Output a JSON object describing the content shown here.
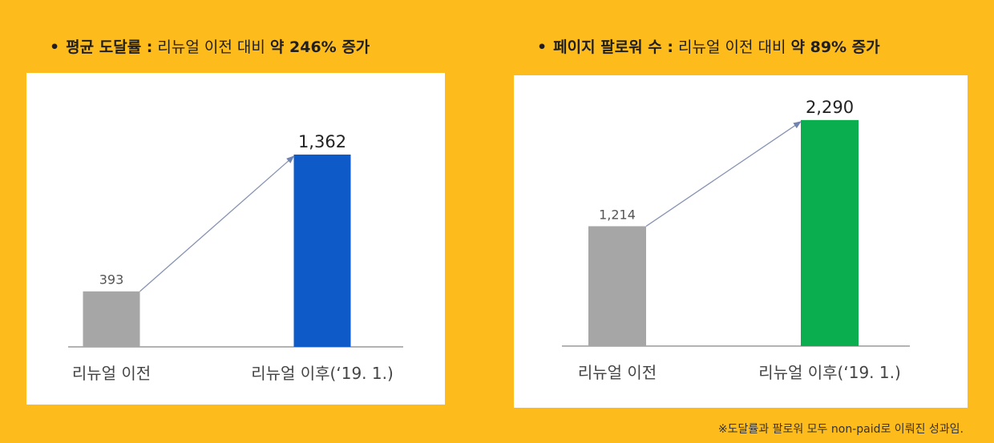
{
  "headings": [
    {
      "bullet": "•",
      "strong_title": "평균 도달률 :",
      "light_text": " 리뉴얼 이전 대비 ",
      "strong_change": "약 246% 증가"
    },
    {
      "bullet": "•",
      "strong_title": "페이지 팔로워 수 :",
      "light_text": " 리뉴얼 이전 대비 ",
      "strong_change": "약 89% 증가"
    }
  ],
  "footnote": "※도달률과 팔로워 모두 non-paid로 이뤄진 성과임.",
  "chart_data": [
    {
      "type": "bar",
      "title": "평균 도달률",
      "categories": [
        "리뉴얼 이전",
        "리뉴얼 이후(‘19. 1.)"
      ],
      "values": [
        393,
        1362
      ],
      "value_labels": [
        "393",
        "1,362"
      ],
      "colors": [
        "#A6A6A6",
        "#0E5AC8"
      ],
      "ylim": [
        0,
        1600
      ],
      "grid": false,
      "legend": "none",
      "annotation": "arrow from first bar top to second bar top"
    },
    {
      "type": "bar",
      "title": "페이지 팔로워 수",
      "categories": [
        "리뉴얼 이전",
        "리뉴얼 이후(‘19. 1.)"
      ],
      "values": [
        1214,
        2290
      ],
      "value_labels": [
        "1,214",
        "2,290"
      ],
      "colors": [
        "#A6A6A6",
        "#0AAE4E"
      ],
      "ylim": [
        0,
        2800
      ],
      "grid": false,
      "legend": "none",
      "annotation": "arrow from first bar top to second bar top"
    }
  ]
}
